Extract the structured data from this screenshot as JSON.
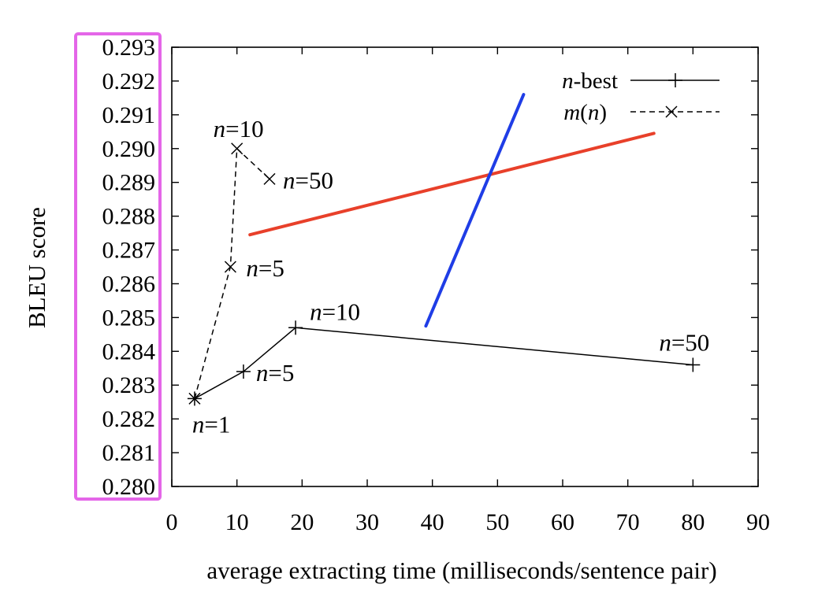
{
  "chart_data": {
    "type": "line",
    "xlabel": "average extracting time (milliseconds/sentence pair)",
    "ylabel": "BLEU score",
    "xlim": [
      0,
      90
    ],
    "ylim": [
      0.28,
      0.293
    ],
    "x_ticks": [
      "0",
      "10",
      "20",
      "30",
      "40",
      "50",
      "60",
      "70",
      "80",
      "90"
    ],
    "y_ticks": [
      "0.280",
      "0.281",
      "0.282",
      "0.283",
      "0.284",
      "0.285",
      "0.286",
      "0.287",
      "0.288",
      "0.289",
      "0.290",
      "0.291",
      "0.292",
      "0.293"
    ],
    "grid": false,
    "legend_position": "top-right",
    "series": [
      {
        "name_italic": "n",
        "name_rest": "-best",
        "style": "solid",
        "marker": "plus",
        "color": "#000000",
        "points": [
          {
            "x": 3.5,
            "y": 0.2826,
            "label_italic": "n",
            "label_rest": "=1"
          },
          {
            "x": 11,
            "y": 0.2834,
            "label_italic": "n",
            "label_rest": "=5"
          },
          {
            "x": 19,
            "y": 0.2847,
            "label_italic": "n",
            "label_rest": "=10"
          },
          {
            "x": 80,
            "y": 0.2836,
            "label_italic": "n",
            "label_rest": "=50"
          }
        ]
      },
      {
        "name_italic": "m",
        "name_rest": "(",
        "name_italic2": "n",
        "name_rest2": ")",
        "style": "dashed",
        "marker": "cross",
        "color": "#000000",
        "points": [
          {
            "x": 3.5,
            "y": 0.2826
          },
          {
            "x": 9,
            "y": 0.2865,
            "label_italic": "n",
            "label_rest": "=5"
          },
          {
            "x": 10,
            "y": 0.29,
            "label_italic": "n",
            "label_rest": "=10"
          },
          {
            "x": 15,
            "y": 0.2891,
            "label_italic": "n",
            "label_rest": "=50"
          }
        ]
      }
    ],
    "overlay_lines": [
      {
        "color": "#e8402a",
        "from": {
          "x": 12,
          "y": 0.28745
        },
        "to": {
          "x": 74,
          "y": 0.29045
        }
      },
      {
        "color": "#1f3de6",
        "from": {
          "x": 39,
          "y": 0.28475
        },
        "to": {
          "x": 54,
          "y": 0.2916
        }
      }
    ],
    "highlight_box_color": "#e466e8"
  }
}
